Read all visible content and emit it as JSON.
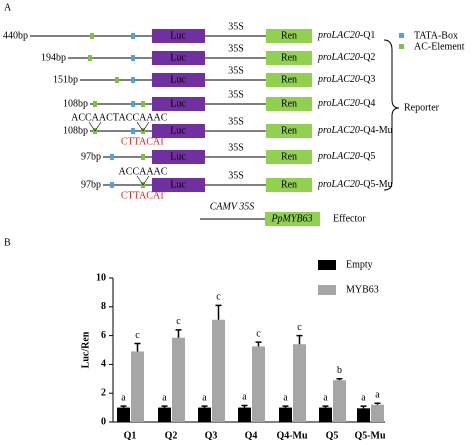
{
  "panel_a": {
    "label": "A",
    "legend": [
      "TATA-Box",
      "AC-Element"
    ],
    "reporter": "Reporter",
    "constructs": [
      {
        "length": "440bp",
        "luc": "Luc",
        "promoter_35s": "35S",
        "ren": "Ren",
        "name": "proLAC20",
        "suffix": "-Q1"
      },
      {
        "length": "194bp",
        "luc": "Luc",
        "promoter_35s": "35S",
        "ren": "Ren",
        "name": "proLAC20",
        "suffix": "-Q2"
      },
      {
        "length": "151bp",
        "luc": "Luc",
        "promoter_35s": "35S",
        "ren": "Ren",
        "name": "proLAC20",
        "suffix": "-Q3"
      },
      {
        "length": "108bp",
        "luc": "Luc",
        "promoter_35s": "35S",
        "ren": "Ren",
        "name": "proLAC20",
        "suffix": "-Q4"
      },
      {
        "length": "108bp",
        "luc": "Luc",
        "promoter_35s": "35S",
        "ren": "Ren",
        "name": "proLAC20",
        "suffix": "-Q4-Mu",
        "above": [
          "ACCAACT",
          "ACCAAAC"
        ],
        "below": [
          "CTTACAT"
        ]
      },
      {
        "length": "97bp",
        "luc": "Luc",
        "promoter_35s": "35S",
        "ren": "Ren",
        "name": "proLAC20",
        "suffix": "-Q5"
      },
      {
        "length": "97bp",
        "luc": "Luc",
        "promoter_35s": "35S",
        "ren": "Ren",
        "name": "proLAC20",
        "suffix": "-Q5-Mu",
        "above": [
          "ACCAAAC"
        ],
        "below": [
          "CTTACAT"
        ]
      }
    ],
    "effector": {
      "promoter": "CAMV 35S",
      "gene": "PpMYB63",
      "label": "Effector"
    }
  },
  "chart_data": {
    "type": "bar",
    "panel_label": "B",
    "y_label": "Luc/Ren",
    "categories": [
      "Q1",
      "Q2",
      "Q3",
      "Q4",
      "Q4-Mu",
      "Q5",
      "Q5-Mu"
    ],
    "series": [
      {
        "name": "Empty",
        "color": "#000000",
        "values": [
          1.0,
          1.0,
          1.0,
          1.0,
          1.0,
          1.0,
          0.95
        ],
        "errors": [
          0.1,
          0.1,
          0.1,
          0.15,
          0.1,
          0.1,
          0.15
        ],
        "letters": [
          "a",
          "a",
          "a",
          "a",
          "a",
          "a",
          "a"
        ]
      },
      {
        "name": "MYB63",
        "color": "#a6a6a6",
        "values": [
          4.9,
          5.85,
          7.1,
          5.25,
          5.4,
          2.9,
          1.2
        ],
        "errors": [
          0.55,
          0.55,
          1.0,
          0.3,
          0.6,
          0.1,
          0.1
        ],
        "letters": [
          "c",
          "c",
          "c",
          "c",
          "c",
          "b",
          "a"
        ]
      }
    ],
    "ylim": [
      0,
      10
    ],
    "yticks": [
      0,
      2,
      4,
      6,
      8,
      10
    ]
  }
}
